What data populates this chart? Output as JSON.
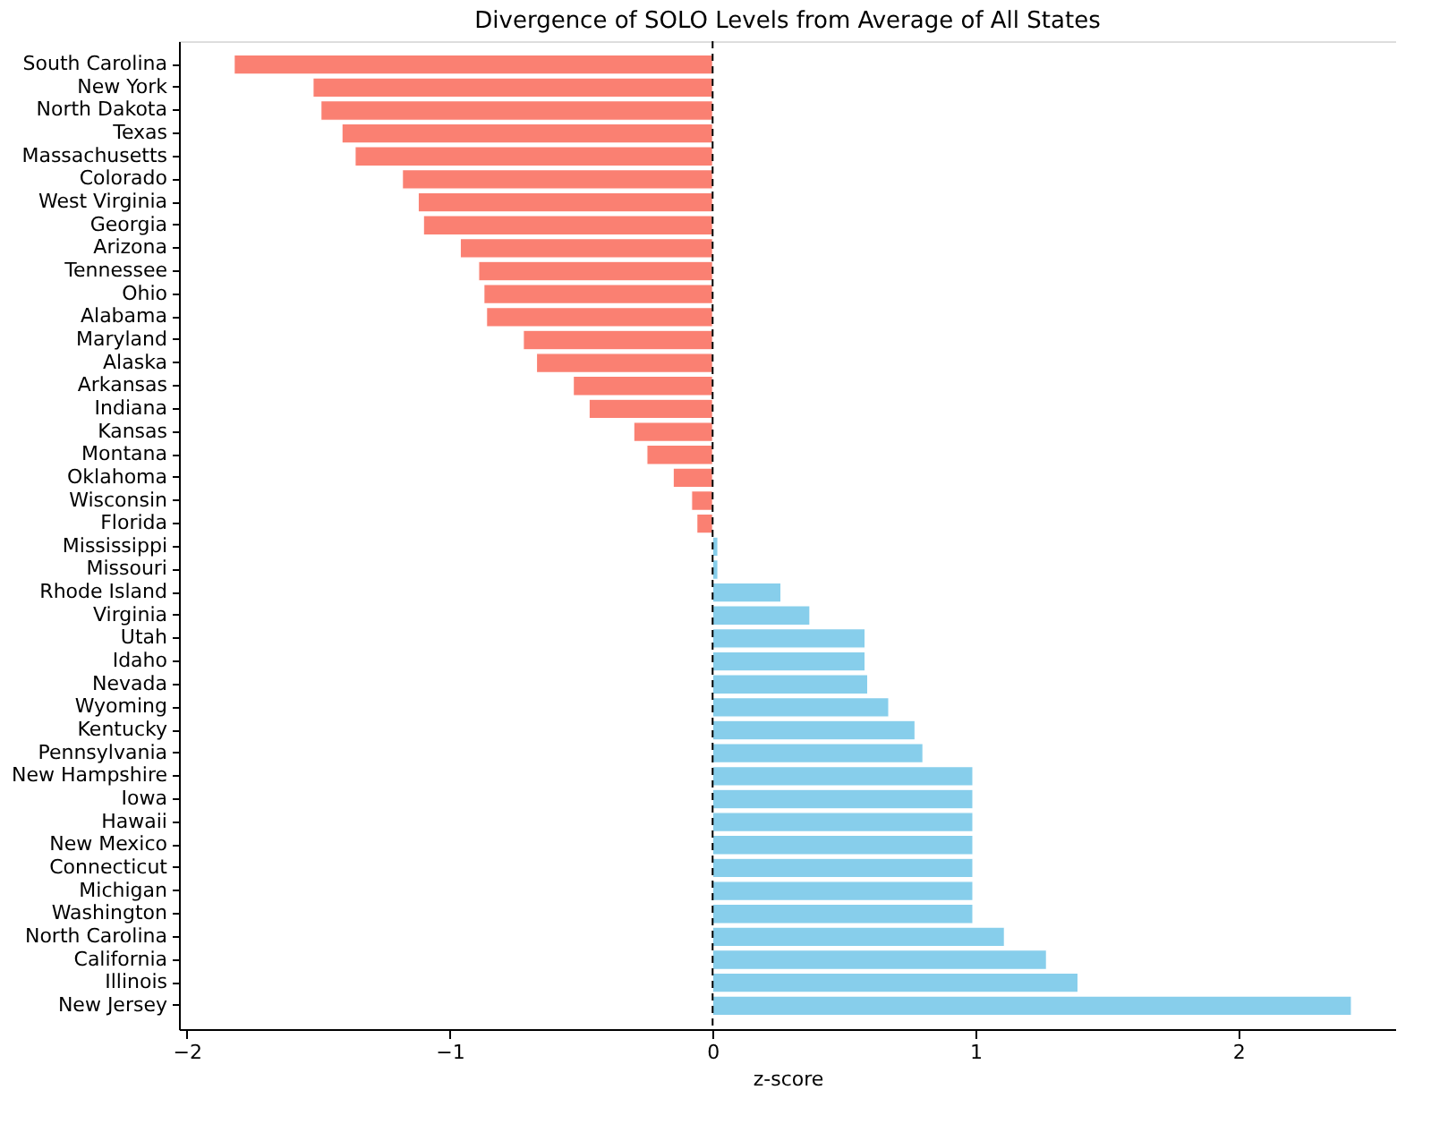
{
  "chart_data": {
    "type": "bar",
    "orientation": "horizontal",
    "title": "Divergence of SOLO Levels from Average of All States",
    "xlabel": "z-score",
    "categories": [
      "South Carolina",
      "New York",
      "North Dakota",
      "Texas",
      "Massachusetts",
      "Colorado",
      "West Virginia",
      "Georgia",
      "Arizona",
      "Tennessee",
      "Ohio",
      "Alabama",
      "Maryland",
      "Alaska",
      "Arkansas",
      "Indiana",
      "Kansas",
      "Montana",
      "Oklahoma",
      "Wisconsin",
      "Florida",
      "Mississippi",
      "Missouri",
      "Rhode Island",
      "Virginia",
      "Utah",
      "Idaho",
      "Nevada",
      "Wyoming",
      "Kentucky",
      "Pennsylvania",
      "New Hampshire",
      "Iowa",
      "Hawaii",
      "New Mexico",
      "Connecticut",
      "Michigan",
      "Washington",
      "North Carolina",
      "California",
      "Illinois",
      "New Jersey"
    ],
    "values": [
      -1.82,
      -1.52,
      -1.49,
      -1.41,
      -1.36,
      -1.18,
      -1.12,
      -1.1,
      -0.96,
      -0.89,
      -0.87,
      -0.86,
      -0.72,
      -0.67,
      -0.53,
      -0.47,
      -0.3,
      -0.25,
      -0.15,
      -0.08,
      -0.06,
      0.02,
      0.02,
      0.26,
      0.37,
      0.58,
      0.58,
      0.59,
      0.67,
      0.77,
      0.8,
      0.99,
      0.99,
      0.99,
      0.99,
      0.99,
      0.99,
      0.99,
      1.11,
      1.27,
      1.39,
      2.43
    ],
    "colors": [
      "#fa8072",
      "#fa8072",
      "#fa8072",
      "#fa8072",
      "#fa8072",
      "#fa8072",
      "#fa8072",
      "#fa8072",
      "#fa8072",
      "#fa8072",
      "#fa8072",
      "#fa8072",
      "#fa8072",
      "#fa8072",
      "#fa8072",
      "#fa8072",
      "#fa8072",
      "#fa8072",
      "#fa8072",
      "#fa8072",
      "#fa8072",
      "#87ceeb",
      "#87ceeb",
      "#87ceeb",
      "#87ceeb",
      "#87ceeb",
      "#87ceeb",
      "#87ceeb",
      "#87ceeb",
      "#87ceeb",
      "#87ceeb",
      "#87ceeb",
      "#87ceeb",
      "#87ceeb",
      "#87ceeb",
      "#87ceeb",
      "#87ceeb",
      "#87ceeb",
      "#87ceeb",
      "#87ceeb",
      "#87ceeb",
      "#87ceeb"
    ],
    "xlim": [
      -2.03,
      2.6
    ],
    "xticks": [
      {
        "value": -2,
        "label": "−2"
      },
      {
        "value": -1,
        "label": "−1"
      },
      0,
      1,
      2
    ],
    "ref_lines": [
      {
        "axis": "x",
        "value": 0,
        "color": "#000000",
        "line_style": "dashed"
      }
    ],
    "grid": false
  }
}
